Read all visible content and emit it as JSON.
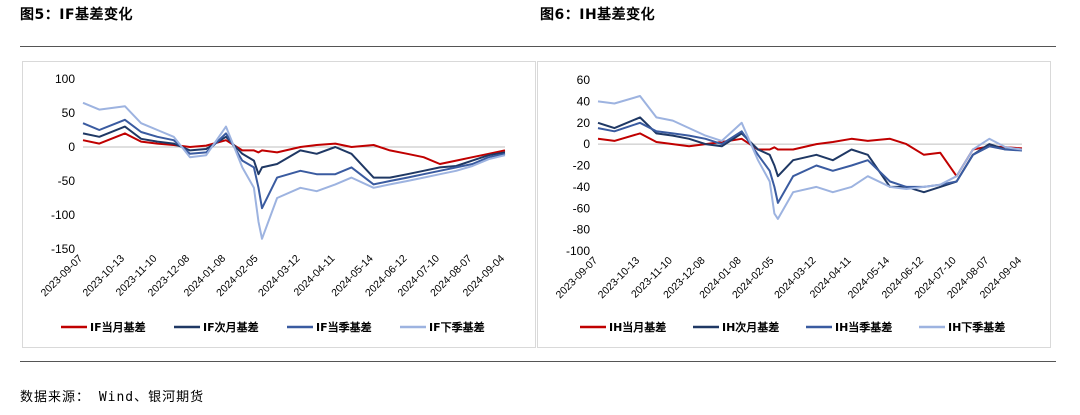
{
  "left_title": "图5：IF基差变化",
  "right_title": "图6：IH基差变化",
  "source": "数据来源： Wind、银河期货",
  "chart_data": [
    {
      "type": "line",
      "title": "IF基差变化",
      "x_ticks": [
        "2023-09-07",
        "2023-10-13",
        "2023-11-10",
        "2023-12-08",
        "2024-01-08",
        "2024-02-05",
        "2024-03-12",
        "2024-04-11",
        "2024-05-14",
        "2024-06-12",
        "2024-07-10",
        "2024-08-07",
        "2024-09-04"
      ],
      "ylim": [
        -150,
        100
      ],
      "y_ticks": [
        100,
        50,
        0,
        -50,
        -100,
        -150
      ],
      "legend_position": "bottom",
      "x": [
        "2023-09-07",
        "2023-09-21",
        "2023-10-13",
        "2023-10-27",
        "2023-11-10",
        "2023-11-24",
        "2023-12-08",
        "2023-12-22",
        "2024-01-08",
        "2024-01-22",
        "2024-02-01",
        "2024-02-05",
        "2024-02-08",
        "2024-02-21",
        "2024-03-12",
        "2024-03-26",
        "2024-04-11",
        "2024-04-25",
        "2024-05-14",
        "2024-05-28",
        "2024-06-12",
        "2024-06-26",
        "2024-07-10",
        "2024-07-24",
        "2024-08-07",
        "2024-08-21",
        "2024-09-04"
      ],
      "series": [
        {
          "name": "IF当月基差",
          "color": "#c00000",
          "values": [
            10,
            5,
            20,
            8,
            5,
            3,
            0,
            2,
            10,
            -5,
            -5,
            -8,
            -5,
            -8,
            0,
            3,
            5,
            0,
            3,
            -5,
            -10,
            -15,
            -25,
            -20,
            -15,
            -10,
            -5
          ]
        },
        {
          "name": "IF次月基差",
          "color": "#1f3864",
          "values": [
            20,
            15,
            30,
            12,
            8,
            5,
            -5,
            -3,
            15,
            -10,
            -20,
            -40,
            -30,
            -25,
            -5,
            -10,
            0,
            -10,
            -45,
            -45,
            -40,
            -35,
            -30,
            -28,
            -20,
            -12,
            -8
          ]
        },
        {
          "name": "IF当季基差",
          "color": "#3a5ba0",
          "values": [
            35,
            25,
            40,
            22,
            15,
            10,
            -10,
            -8,
            20,
            -20,
            -30,
            -60,
            -90,
            -45,
            -35,
            -40,
            -40,
            -30,
            -55,
            -50,
            -45,
            -40,
            -35,
            -30,
            -25,
            -15,
            -10
          ]
        },
        {
          "name": "IF下季基差",
          "color": "#9db3e0",
          "values": [
            65,
            55,
            60,
            35,
            25,
            15,
            -15,
            -12,
            30,
            -30,
            -60,
            -110,
            -135,
            -75,
            -60,
            -65,
            -55,
            -45,
            -60,
            -55,
            -50,
            -45,
            -40,
            -35,
            -28,
            -18,
            -12
          ]
        }
      ]
    },
    {
      "type": "line",
      "title": "IH基差变化",
      "x_ticks": [
        "2023-09-07",
        "2023-10-13",
        "2023-11-10",
        "2023-12-08",
        "2024-01-08",
        "2024-02-05",
        "2024-03-12",
        "2024-04-11",
        "2024-05-14",
        "2024-06-12",
        "2024-07-10",
        "2024-08-07",
        "2024-09-04"
      ],
      "ylim": [
        -100,
        60
      ],
      "y_ticks": [
        60,
        40,
        20,
        0,
        -20,
        -40,
        -60,
        -80,
        -100
      ],
      "legend_position": "bottom",
      "x": [
        "2023-09-07",
        "2023-09-21",
        "2023-10-13",
        "2023-10-27",
        "2023-11-10",
        "2023-11-24",
        "2023-12-08",
        "2023-12-22",
        "2024-01-08",
        "2024-01-22",
        "2024-02-01",
        "2024-02-05",
        "2024-02-08",
        "2024-02-21",
        "2024-03-12",
        "2024-03-26",
        "2024-04-11",
        "2024-04-25",
        "2024-05-14",
        "2024-05-28",
        "2024-06-12",
        "2024-06-26",
        "2024-07-10",
        "2024-07-24",
        "2024-08-07",
        "2024-08-21",
        "2024-09-04"
      ],
      "series": [
        {
          "name": "IH当月基差",
          "color": "#c00000",
          "values": [
            5,
            3,
            10,
            2,
            0,
            -2,
            0,
            2,
            5,
            -5,
            -5,
            -3,
            -5,
            -5,
            0,
            2,
            5,
            3,
            5,
            0,
            -10,
            -8,
            -30,
            -5,
            -2,
            -3,
            -4
          ]
        },
        {
          "name": "IH次月基差",
          "color": "#1f3864",
          "values": [
            20,
            15,
            25,
            10,
            8,
            5,
            0,
            -2,
            10,
            -5,
            -10,
            -20,
            -30,
            -15,
            -10,
            -15,
            -5,
            -10,
            -40,
            -40,
            -45,
            -40,
            -35,
            -10,
            0,
            -5,
            -5
          ]
        },
        {
          "name": "IH当季基差",
          "color": "#3a5ba0",
          "values": [
            15,
            12,
            20,
            12,
            10,
            8,
            5,
            0,
            12,
            -10,
            -25,
            -40,
            -55,
            -30,
            -20,
            -25,
            -20,
            -15,
            -35,
            -40,
            -40,
            -38,
            -35,
            -10,
            -2,
            -5,
            -6
          ]
        },
        {
          "name": "IH下季基差",
          "color": "#9db3e0",
          "values": [
            40,
            38,
            45,
            25,
            22,
            15,
            8,
            3,
            20,
            -15,
            -35,
            -65,
            -70,
            -45,
            -40,
            -45,
            -40,
            -30,
            -40,
            -42,
            -40,
            -38,
            -30,
            -5,
            5,
            -3,
            -5
          ]
        }
      ]
    }
  ]
}
